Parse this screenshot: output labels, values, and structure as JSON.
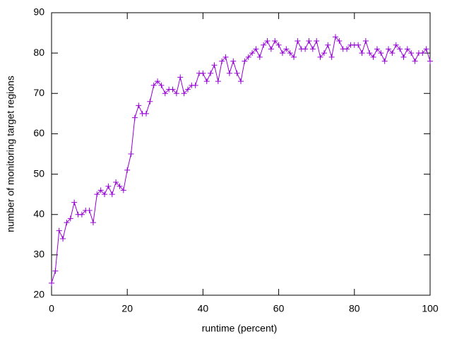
{
  "chart_data": {
    "type": "line",
    "xlabel": "runtime (percent)",
    "ylabel": "number of monitoring target regions",
    "x": [
      0,
      1,
      2,
      3,
      4,
      5,
      6,
      7,
      8,
      9,
      10,
      11,
      12,
      13,
      14,
      15,
      16,
      17,
      18,
      19,
      20,
      21,
      22,
      23,
      24,
      25,
      26,
      27,
      28,
      29,
      30,
      31,
      32,
      33,
      34,
      35,
      36,
      37,
      38,
      39,
      40,
      41,
      42,
      43,
      44,
      45,
      46,
      47,
      48,
      49,
      50,
      51,
      52,
      53,
      54,
      55,
      56,
      57,
      58,
      59,
      60,
      61,
      62,
      63,
      64,
      65,
      66,
      67,
      68,
      69,
      70,
      71,
      72,
      73,
      74,
      75,
      76,
      77,
      78,
      79,
      80,
      81,
      82,
      83,
      84,
      85,
      86,
      87,
      88,
      89,
      90,
      91,
      92,
      93,
      94,
      95,
      96,
      97,
      98,
      99,
      100
    ],
    "series": [
      {
        "color": "#9400d3",
        "values": [
          23,
          26,
          36,
          34,
          38,
          39,
          43,
          40,
          40,
          41,
          41,
          38,
          45,
          46,
          45,
          47,
          45,
          48,
          47,
          46,
          51,
          55,
          64,
          67,
          65,
          65,
          68,
          72,
          73,
          72,
          70,
          71,
          71,
          70,
          74,
          70,
          71,
          72,
          72,
          75,
          75,
          73,
          75,
          77,
          73,
          78,
          79,
          75,
          78,
          75,
          73,
          78,
          79,
          80,
          81,
          79,
          82,
          83,
          81,
          83,
          82,
          80,
          81,
          80,
          79,
          83,
          81,
          81,
          83,
          81,
          83,
          79,
          80,
          82,
          79,
          84,
          83,
          81,
          81,
          82,
          82,
          82,
          80,
          83,
          80,
          79,
          81,
          80,
          78,
          81,
          80,
          82,
          81,
          79,
          81,
          80,
          78,
          80,
          80,
          81,
          78
        ]
      }
    ],
    "xlim": [
      0,
      100
    ],
    "ylim": [
      20,
      90
    ],
    "xticks": [
      0,
      20,
      40,
      60,
      80,
      100
    ],
    "yticks": [
      20,
      30,
      40,
      50,
      60,
      70,
      80,
      90
    ],
    "grid": false
  }
}
